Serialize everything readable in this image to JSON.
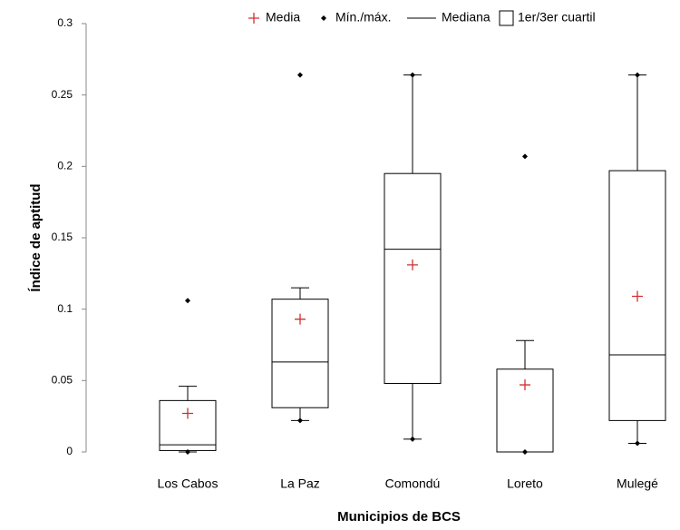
{
  "chart_data": {
    "type": "box",
    "ylabel": "Índice de aptitud",
    "xlabel": "Municipios de BCS",
    "legend": [
      "Media",
      "Mín./máx.",
      "Mediana",
      "1er/3er cuartil"
    ],
    "legend_position": "top",
    "categories": [
      "Los Cabos",
      "La Paz",
      "Comondú",
      "Loreto",
      "Mulegé"
    ],
    "whisker_low": [
      0,
      0.022,
      0.009,
      0,
      0.006
    ],
    "q1": [
      0.001,
      0.031,
      0.048,
      0,
      0.022
    ],
    "median": [
      0.005,
      0.063,
      0.142,
      0,
      0.068
    ],
    "q3": [
      0.036,
      0.107,
      0.195,
      0.058,
      0.197
    ],
    "whisker_high": [
      0.046,
      0.115,
      0.264,
      0.078,
      0.264
    ],
    "mean": [
      0.027,
      0.093,
      0.131,
      0.047,
      0.109
    ],
    "min": [
      0,
      0.022,
      0.009,
      0,
      0.006
    ],
    "max": [
      0.106,
      0.264,
      0.264,
      0.207,
      0.264
    ],
    "box_color": "#000000",
    "mean_color": "#d03030",
    "ylim": [
      0,
      0.3
    ],
    "yticks": [
      0,
      0.05,
      0.1,
      0.15,
      0.2,
      0.25,
      0.3
    ]
  }
}
